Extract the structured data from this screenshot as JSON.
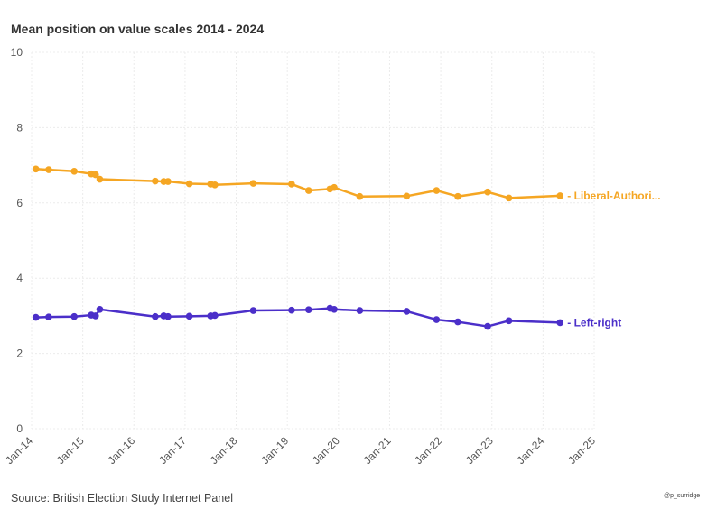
{
  "title": "Mean position on value scales 2014 - 2024",
  "source": "Source: British Election Study Internet Panel",
  "credit": "@p_surridge",
  "chart_data": {
    "type": "line",
    "title": "Mean position on value scales 2014 - 2024",
    "xlabel": "",
    "ylabel": "",
    "ylim": [
      0,
      10
    ],
    "yticks": [
      0,
      2,
      4,
      6,
      8,
      10
    ],
    "xticks": [
      "Jan-14",
      "Jan-15",
      "Jan-16",
      "Jan-17",
      "Jan-18",
      "Jan-19",
      "Jan-20",
      "Jan-21",
      "Jan-22",
      "Jan-23",
      "Jan-24",
      "Jan-25"
    ],
    "xlim": [
      "2014-01",
      "2025-01"
    ],
    "grid": true,
    "legend": "direct labels at line ends",
    "series": [
      {
        "name": "Liberal-Authori...",
        "color": "#F5A623",
        "points": [
          {
            "x": "2014-02",
            "y": 6.9
          },
          {
            "x": "2014-05",
            "y": 6.88
          },
          {
            "x": "2014-11",
            "y": 6.84
          },
          {
            "x": "2015-03",
            "y": 6.77
          },
          {
            "x": "2015-04",
            "y": 6.75
          },
          {
            "x": "2015-05",
            "y": 6.63
          },
          {
            "x": "2016-06",
            "y": 6.58
          },
          {
            "x": "2016-08",
            "y": 6.57
          },
          {
            "x": "2016-09",
            "y": 6.57
          },
          {
            "x": "2017-02",
            "y": 6.51
          },
          {
            "x": "2017-07",
            "y": 6.5
          },
          {
            "x": "2017-08",
            "y": 6.48
          },
          {
            "x": "2018-05",
            "y": 6.52
          },
          {
            "x": "2019-02",
            "y": 6.5
          },
          {
            "x": "2019-06",
            "y": 6.33
          },
          {
            "x": "2019-11",
            "y": 6.37
          },
          {
            "x": "2019-12",
            "y": 6.41
          },
          {
            "x": "2020-06",
            "y": 6.17
          },
          {
            "x": "2021-05",
            "y": 6.18
          },
          {
            "x": "2021-12",
            "y": 6.33
          },
          {
            "x": "2022-05",
            "y": 6.17
          },
          {
            "x": "2022-12",
            "y": 6.29
          },
          {
            "x": "2023-05",
            "y": 6.13
          },
          {
            "x": "2024-05",
            "y": 6.19
          }
        ]
      },
      {
        "name": "Left-right",
        "color": "#4B2FC9",
        "points": [
          {
            "x": "2014-02",
            "y": 2.96
          },
          {
            "x": "2014-05",
            "y": 2.97
          },
          {
            "x": "2014-11",
            "y": 2.98
          },
          {
            "x": "2015-03",
            "y": 3.02
          },
          {
            "x": "2015-04",
            "y": 3.0
          },
          {
            "x": "2015-05",
            "y": 3.17
          },
          {
            "x": "2016-06",
            "y": 2.98
          },
          {
            "x": "2016-08",
            "y": 3.0
          },
          {
            "x": "2016-09",
            "y": 2.98
          },
          {
            "x": "2017-02",
            "y": 2.99
          },
          {
            "x": "2017-07",
            "y": 3.0
          },
          {
            "x": "2017-08",
            "y": 3.01
          },
          {
            "x": "2018-05",
            "y": 3.14
          },
          {
            "x": "2019-02",
            "y": 3.15
          },
          {
            "x": "2019-06",
            "y": 3.16
          },
          {
            "x": "2019-11",
            "y": 3.2
          },
          {
            "x": "2019-12",
            "y": 3.17
          },
          {
            "x": "2020-06",
            "y": 3.14
          },
          {
            "x": "2021-05",
            "y": 3.12
          },
          {
            "x": "2021-12",
            "y": 2.9
          },
          {
            "x": "2022-05",
            "y": 2.84
          },
          {
            "x": "2022-12",
            "y": 2.72
          },
          {
            "x": "2023-05",
            "y": 2.87
          },
          {
            "x": "2024-05",
            "y": 2.82
          }
        ]
      }
    ]
  }
}
